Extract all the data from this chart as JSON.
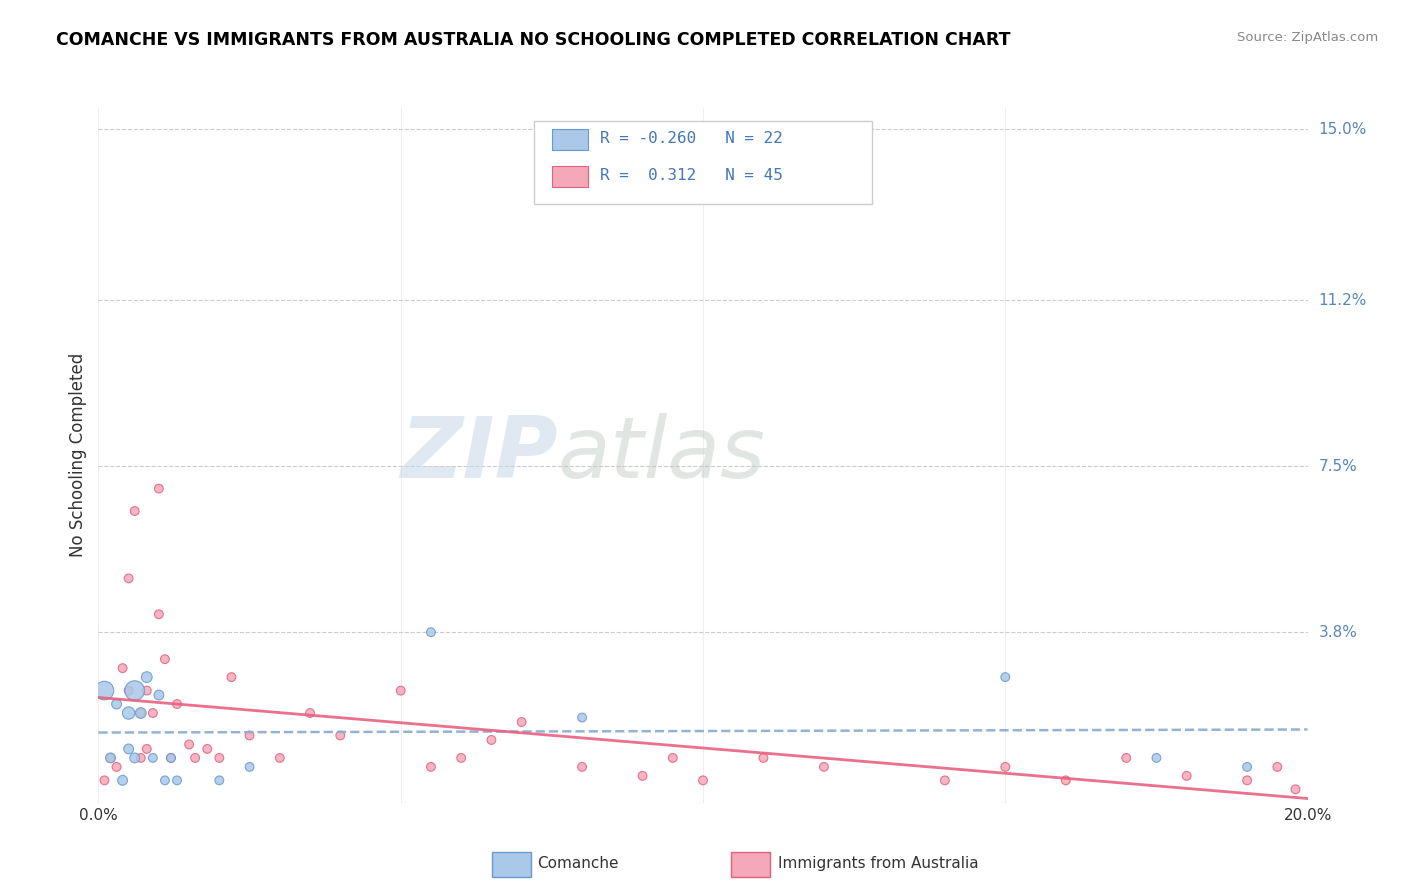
{
  "title": "COMANCHE VS IMMIGRANTS FROM AUSTRALIA NO SCHOOLING COMPLETED CORRELATION CHART",
  "source": "Source: ZipAtlas.com",
  "ylabel": "No Schooling Completed",
  "xlim": [
    0.0,
    0.2
  ],
  "ylim": [
    0.0,
    0.155
  ],
  "ytick_vals": [
    0.0,
    0.038,
    0.075,
    0.112,
    0.15
  ],
  "ytick_labels": [
    "",
    "3.8%",
    "7.5%",
    "11.2%",
    "15.0%"
  ],
  "xtick_vals": [
    0.0,
    0.05,
    0.1,
    0.15,
    0.2
  ],
  "xtick_labels": [
    "0.0%",
    "",
    "",
    "",
    "20.0%"
  ],
  "color_comanche_fill": "#aac8e8",
  "color_comanche_edge": "#6699cc",
  "color_australia_fill": "#f5a8b8",
  "color_australia_edge": "#e06080",
  "color_line_comanche": "#88aad0",
  "color_line_australia": "#e86080",
  "R_comanche": -0.26,
  "N_comanche": 22,
  "R_australia": 0.312,
  "N_australia": 45,
  "comanche_x": [
    0.001,
    0.002,
    0.003,
    0.004,
    0.005,
    0.005,
    0.006,
    0.006,
    0.007,
    0.008,
    0.009,
    0.01,
    0.011,
    0.012,
    0.013,
    0.02,
    0.025,
    0.055,
    0.08,
    0.15,
    0.175,
    0.19
  ],
  "comanche_y": [
    0.025,
    0.01,
    0.022,
    0.005,
    0.02,
    0.012,
    0.025,
    0.01,
    0.02,
    0.028,
    0.01,
    0.024,
    0.005,
    0.01,
    0.005,
    0.005,
    0.008,
    0.038,
    0.019,
    0.028,
    0.01,
    0.008
  ],
  "comanche_size": [
    180,
    50,
    50,
    50,
    80,
    50,
    200,
    50,
    60,
    60,
    40,
    50,
    40,
    40,
    40,
    40,
    40,
    40,
    40,
    40,
    40,
    40
  ],
  "australia_x": [
    0.001,
    0.002,
    0.003,
    0.004,
    0.005,
    0.005,
    0.006,
    0.007,
    0.007,
    0.008,
    0.008,
    0.009,
    0.01,
    0.01,
    0.011,
    0.012,
    0.013,
    0.015,
    0.016,
    0.018,
    0.02,
    0.022,
    0.025,
    0.03,
    0.035,
    0.04,
    0.05,
    0.055,
    0.06,
    0.065,
    0.07,
    0.08,
    0.09,
    0.095,
    0.1,
    0.11,
    0.12,
    0.14,
    0.15,
    0.16,
    0.17,
    0.18,
    0.19,
    0.195,
    0.198
  ],
  "australia_y": [
    0.005,
    0.01,
    0.008,
    0.03,
    0.025,
    0.05,
    0.065,
    0.01,
    0.02,
    0.025,
    0.012,
    0.02,
    0.07,
    0.042,
    0.032,
    0.01,
    0.022,
    0.013,
    0.01,
    0.012,
    0.01,
    0.028,
    0.015,
    0.01,
    0.02,
    0.015,
    0.025,
    0.008,
    0.01,
    0.014,
    0.018,
    0.008,
    0.006,
    0.01,
    0.005,
    0.01,
    0.008,
    0.005,
    0.008,
    0.005,
    0.01,
    0.006,
    0.005,
    0.008,
    0.003
  ],
  "australia_size": [
    40,
    40,
    40,
    40,
    40,
    40,
    40,
    40,
    40,
    40,
    40,
    40,
    40,
    40,
    40,
    40,
    40,
    40,
    40,
    40,
    40,
    40,
    40,
    40,
    40,
    40,
    40,
    40,
    40,
    40,
    40,
    40,
    40,
    40,
    40,
    40,
    40,
    40,
    40,
    40,
    40,
    40,
    40,
    40,
    40
  ]
}
